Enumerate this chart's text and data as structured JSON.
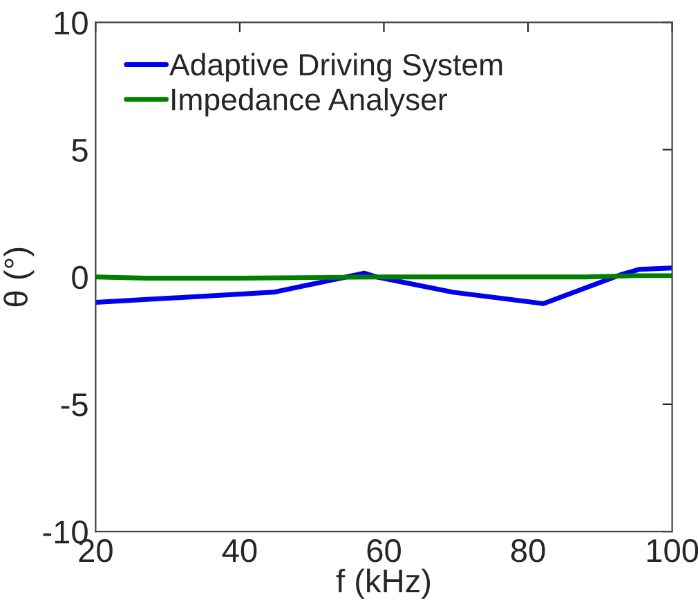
{
  "chart_data": {
    "type": "line",
    "xlabel": "f (kHz)",
    "ylabel": "θ (°)",
    "xlim": [
      20,
      100
    ],
    "ylim": [
      -10,
      10
    ],
    "xticks": [
      20,
      40,
      60,
      80,
      100
    ],
    "yticks": [
      -10,
      -5,
      0,
      5,
      10
    ],
    "grid": false,
    "legend": "top left",
    "series": [
      {
        "name": "Adaptive Driving System",
        "color": "#0000ee",
        "x": [
          20,
          44.7,
          57.3,
          59,
          69.6,
          82.1,
          93,
          95.5,
          100
        ],
        "values": [
          -1.0,
          -0.6,
          0.15,
          0,
          -0.6,
          -1.05,
          0.1,
          0.3,
          0.35
        ]
      },
      {
        "name": "Impedance Analyser",
        "color": "#007f00",
        "x": [
          20,
          27,
          40,
          60,
          88,
          95,
          100
        ],
        "values": [
          0,
          -0.05,
          -0.05,
          0,
          0,
          0.05,
          0.05
        ]
      }
    ]
  }
}
